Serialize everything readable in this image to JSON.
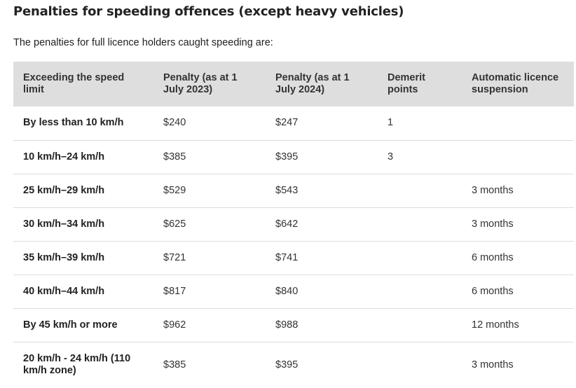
{
  "heading": "Penalties for speeding offences (except heavy vehicles)",
  "intro": "The penalties for full licence holders caught speeding are:",
  "table": {
    "headers": [
      "Exceeding the speed limit",
      "Penalty (as at 1 July 2023)",
      "Penalty (as at 1 July 2024)",
      "Demerit points",
      "Automatic licence suspension"
    ],
    "rows": [
      [
        "By less than 10 km/h",
        "$240",
        "$247",
        "1",
        ""
      ],
      [
        "10 km/h–24 km/h",
        "$385",
        "$395",
        "3",
        ""
      ],
      [
        "25 km/h–29 km/h",
        "$529",
        "$543",
        "",
        "3 months"
      ],
      [
        "30 km/h–34 km/h",
        "$625",
        "$642",
        "",
        "3 months"
      ],
      [
        "35 km/h–39 km/h",
        "$721",
        "$741",
        "",
        "6 months"
      ],
      [
        "40 km/h–44 km/h",
        "$817",
        "$840",
        "",
        "6 months"
      ],
      [
        "By 45 km/h or more",
        "$962",
        "$988",
        "",
        "12 months"
      ],
      [
        "20 km/h - 24 km/h (110 km/h zone)",
        "$385",
        "$395",
        "",
        "3 months"
      ]
    ]
  }
}
